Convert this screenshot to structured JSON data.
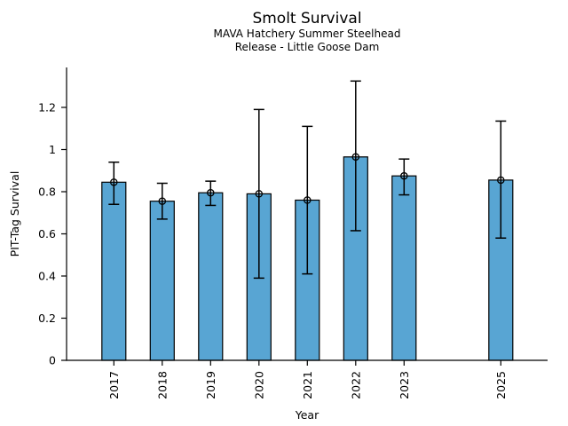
{
  "chart_data": {
    "type": "bar",
    "title": "Smolt Survival",
    "subtitle1": "MAVA Hatchery Summer Steelhead",
    "subtitle2": "Release - Little Goose Dam",
    "xlabel": "Year",
    "ylabel": "PIT-Tag Survival",
    "categories": [
      "2017",
      "2018",
      "2019",
      "2020",
      "2021",
      "2022",
      "2023",
      "2025"
    ],
    "x_positions": [
      0,
      1,
      2,
      3,
      4,
      5,
      6,
      8
    ],
    "values": [
      0.845,
      0.755,
      0.795,
      0.79,
      0.76,
      0.965,
      0.875,
      0.855
    ],
    "error_low": [
      0.74,
      0.67,
      0.735,
      0.39,
      0.41,
      0.615,
      0.785,
      0.58
    ],
    "error_high": [
      0.94,
      0.84,
      0.85,
      1.19,
      1.11,
      1.325,
      0.955,
      1.135
    ],
    "y_tick_labels": [
      "0",
      "0.2",
      "0.4",
      "0.6",
      "0.8",
      "1",
      "1.2"
    ],
    "y_tick_values": [
      0,
      0.2,
      0.4,
      0.6,
      0.8,
      1.0,
      1.2
    ],
    "ylim": [
      0,
      1.39
    ],
    "grid": false,
    "legend": null,
    "marker": "open-circle",
    "colors": {
      "bar_fill": "#58a5d3",
      "bar_edge": "#000000",
      "error_bar": "#000000",
      "axis": "#000000",
      "background": "#ffffff"
    }
  }
}
